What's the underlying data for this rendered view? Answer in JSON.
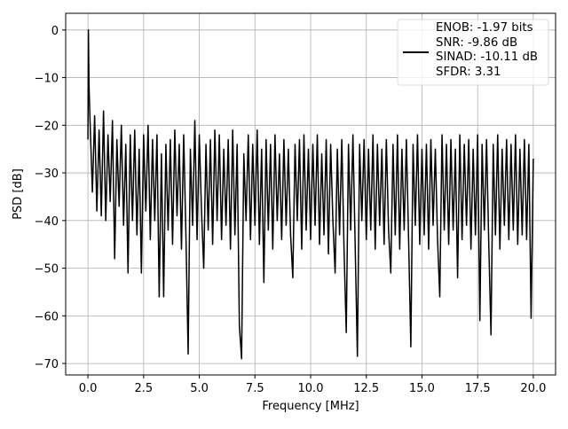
{
  "chart_data": {
    "type": "line",
    "xlabel": "Frequency [MHz]",
    "ylabel": "PSD [dB]",
    "xlim": [
      -1,
      21
    ],
    "ylim": [
      -72.4,
      3.5
    ],
    "xticks": [
      {
        "value": 0,
        "label": "0.0"
      },
      {
        "value": 2.5,
        "label": "2.5"
      },
      {
        "value": 5,
        "label": "5.0"
      },
      {
        "value": 7.5,
        "label": "7.5"
      },
      {
        "value": 10,
        "label": "10.0"
      },
      {
        "value": 12.5,
        "label": "12.5"
      },
      {
        "value": 15,
        "label": "15.0"
      },
      {
        "value": 17.5,
        "label": "17.5"
      },
      {
        "value": 20,
        "label": "20.0"
      }
    ],
    "yticks": [
      0,
      {
        "value": -10,
        "label": "−10"
      },
      {
        "value": -20,
        "label": "−20"
      },
      {
        "value": -30,
        "label": "−30"
      },
      {
        "value": -40,
        "label": "−40"
      },
      {
        "value": -50,
        "label": "−50"
      },
      {
        "value": -60,
        "label": "−60"
      },
      {
        "value": -70,
        "label": "−70"
      }
    ],
    "grid": true,
    "legend": "upper right",
    "x": [
      0,
      0.02,
      0.05,
      0.1,
      0.2,
      0.3,
      0.4,
      0.5,
      0.6,
      0.7,
      0.8,
      0.9,
      1.0,
      1.1,
      1.2,
      1.3,
      1.4,
      1.5,
      1.6,
      1.7,
      1.8,
      1.9,
      2.0,
      2.1,
      2.2,
      2.3,
      2.4,
      2.5,
      2.6,
      2.7,
      2.8,
      2.9,
      3.0,
      3.1,
      3.2,
      3.3,
      3.4,
      3.5,
      3.6,
      3.7,
      3.8,
      3.9,
      4.0,
      4.1,
      4.2,
      4.3,
      4.4,
      4.5,
      4.6,
      4.7,
      4.8,
      4.9,
      5.0,
      5.1,
      5.2,
      5.3,
      5.4,
      5.5,
      5.6,
      5.7,
      5.8,
      5.9,
      6.0,
      6.1,
      6.2,
      6.3,
      6.4,
      6.5,
      6.6,
      6.7,
      6.8,
      6.9,
      7.0,
      7.1,
      7.2,
      7.3,
      7.4,
      7.5,
      7.6,
      7.7,
      7.8,
      7.9,
      8.0,
      8.1,
      8.2,
      8.3,
      8.4,
      8.5,
      8.6,
      8.7,
      8.8,
      8.9,
      9.0,
      9.1,
      9.2,
      9.3,
      9.4,
      9.5,
      9.6,
      9.7,
      9.8,
      9.9,
      10.0,
      10.1,
      10.2,
      10.3,
      10.4,
      10.5,
      10.6,
      10.7,
      10.8,
      10.9,
      11.0,
      11.1,
      11.2,
      11.3,
      11.4,
      11.5,
      11.6,
      11.7,
      11.8,
      11.9,
      12.0,
      12.1,
      12.2,
      12.3,
      12.4,
      12.5,
      12.6,
      12.7,
      12.8,
      12.9,
      13.0,
      13.1,
      13.2,
      13.3,
      13.4,
      13.5,
      13.6,
      13.7,
      13.8,
      13.9,
      14.0,
      14.1,
      14.2,
      14.3,
      14.4,
      14.5,
      14.6,
      14.7,
      14.8,
      14.9,
      15.0,
      15.1,
      15.2,
      15.3,
      15.4,
      15.5,
      15.6,
      15.7,
      15.8,
      15.9,
      16.0,
      16.1,
      16.2,
      16.3,
      16.4,
      16.5,
      16.6,
      16.7,
      16.8,
      16.9,
      17.0,
      17.1,
      17.2,
      17.3,
      17.4,
      17.5,
      17.6,
      17.7,
      17.8,
      17.9,
      18.0,
      18.1,
      18.2,
      18.3,
      18.4,
      18.5,
      18.6,
      18.7,
      18.8,
      18.9,
      19.0,
      19.1,
      19.2,
      19.3,
      19.4,
      19.5,
      19.6,
      19.7,
      19.8,
      19.9,
      20.0
    ],
    "series": [
      {
        "name": "ENOB: -1.97 bits\nSNR: -9.86 dB\nSINAD: -10.11 dB\nSFDR: 3.31",
        "color": "#000000",
        "values": [
          -23,
          0,
          -12,
          -20,
          -34,
          -18,
          -38,
          -21,
          -39,
          -17,
          -40,
          -22,
          -36,
          -19,
          -48,
          -23,
          -37,
          -20,
          -41,
          -24,
          -51,
          -22,
          -40,
          -21,
          -43,
          -25,
          -51,
          -22,
          -38,
          -20,
          -44,
          -23,
          -40,
          -22,
          -56,
          -26,
          -56,
          -24,
          -42,
          -23,
          -45,
          -21,
          -39,
          -24,
          -46,
          -22,
          -43,
          -68,
          -25,
          -41,
          -19,
          -44,
          -22,
          -38,
          -50,
          -24,
          -42,
          -23,
          -45,
          -21,
          -40,
          -22,
          -44,
          -25,
          -41,
          -23,
          -46,
          -21,
          -43,
          -24,
          -62,
          -69,
          -26,
          -40,
          -22,
          -44,
          -24,
          -41,
          -21,
          -45,
          -25,
          -53,
          -23,
          -42,
          -24,
          -46,
          -22,
          -40,
          -26,
          -44,
          -23,
          -41,
          -25,
          -43,
          -52,
          -24,
          -40,
          -23,
          -46,
          -22,
          -42,
          -25,
          -44,
          -24,
          -41,
          -22,
          -45,
          -26,
          -43,
          -23,
          -47,
          -24,
          -40,
          -51,
          -25,
          -43,
          -23,
          -46,
          -63.5,
          -24,
          -42,
          -22,
          -45,
          -68.5,
          -24,
          -40,
          -23,
          -44,
          -25,
          -42,
          -22,
          -46,
          -24,
          -41,
          -25,
          -45,
          -23,
          -42,
          -51,
          -24,
          -43,
          -22,
          -46,
          -25,
          -42,
          -23,
          -44,
          -66.5,
          -24,
          -41,
          -22,
          -45,
          -25,
          -43,
          -24,
          -46,
          -23,
          -41,
          -25,
          -44,
          -56,
          -22,
          -42,
          -24,
          -45,
          -23,
          -42,
          -25,
          -52,
          -22,
          -44,
          -24,
          -41,
          -23,
          -46,
          -25,
          -43,
          -22,
          -61,
          -24,
          -42,
          -23,
          -45,
          -64,
          -24,
          -43,
          -22,
          -46,
          -25,
          -41,
          -23,
          -44,
          -24,
          -42,
          -22,
          -45,
          -25,
          -43,
          -23,
          -44,
          -24,
          -60.5,
          -27
        ]
      }
    ]
  }
}
